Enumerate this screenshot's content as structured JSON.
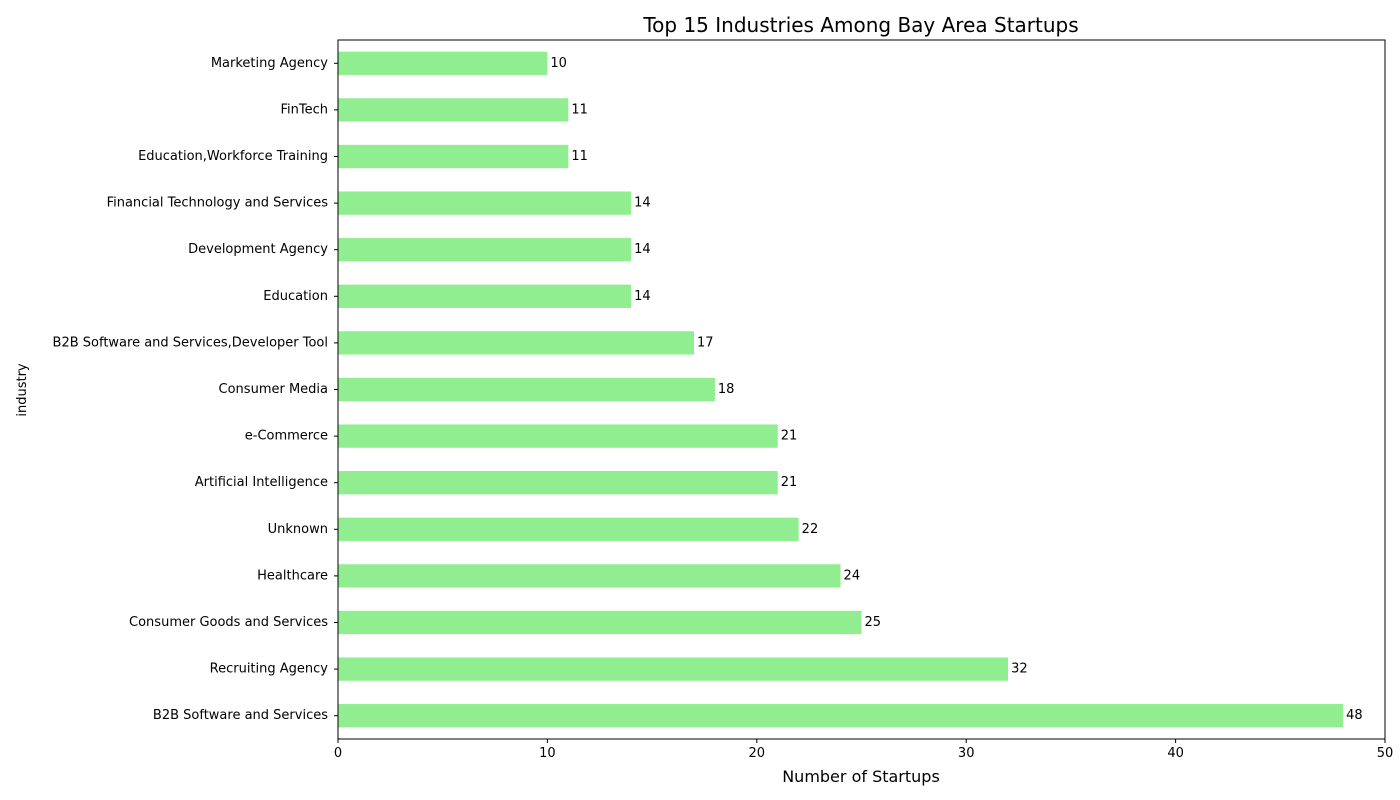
{
  "colors": {
    "bar": "#90ee90",
    "axis": "#000000",
    "background": "#ffffff"
  },
  "chart_data": {
    "type": "bar",
    "orientation": "horizontal",
    "title": "Top 15 Industries Among Bay Area Startups",
    "xlabel": "Number of Startups",
    "ylabel": "industry",
    "xlim": [
      0,
      50
    ],
    "xticks": [
      0,
      10,
      20,
      30,
      40,
      50
    ],
    "grid": false,
    "categories": [
      "B2B Software and Services",
      "Recruiting Agency",
      "Consumer Goods and Services",
      "Healthcare",
      "Unknown",
      "Artificial Intelligence",
      "e-Commerce",
      "Consumer Media",
      "B2B Software and Services,Developer Tool",
      "Education",
      "Development Agency",
      "Financial Technology and Services",
      "Education,Workforce Training",
      "FinTech",
      "Marketing Agency"
    ],
    "values": [
      48,
      32,
      25,
      24,
      22,
      21,
      21,
      18,
      17,
      14,
      14,
      14,
      11,
      11,
      10
    ]
  }
}
